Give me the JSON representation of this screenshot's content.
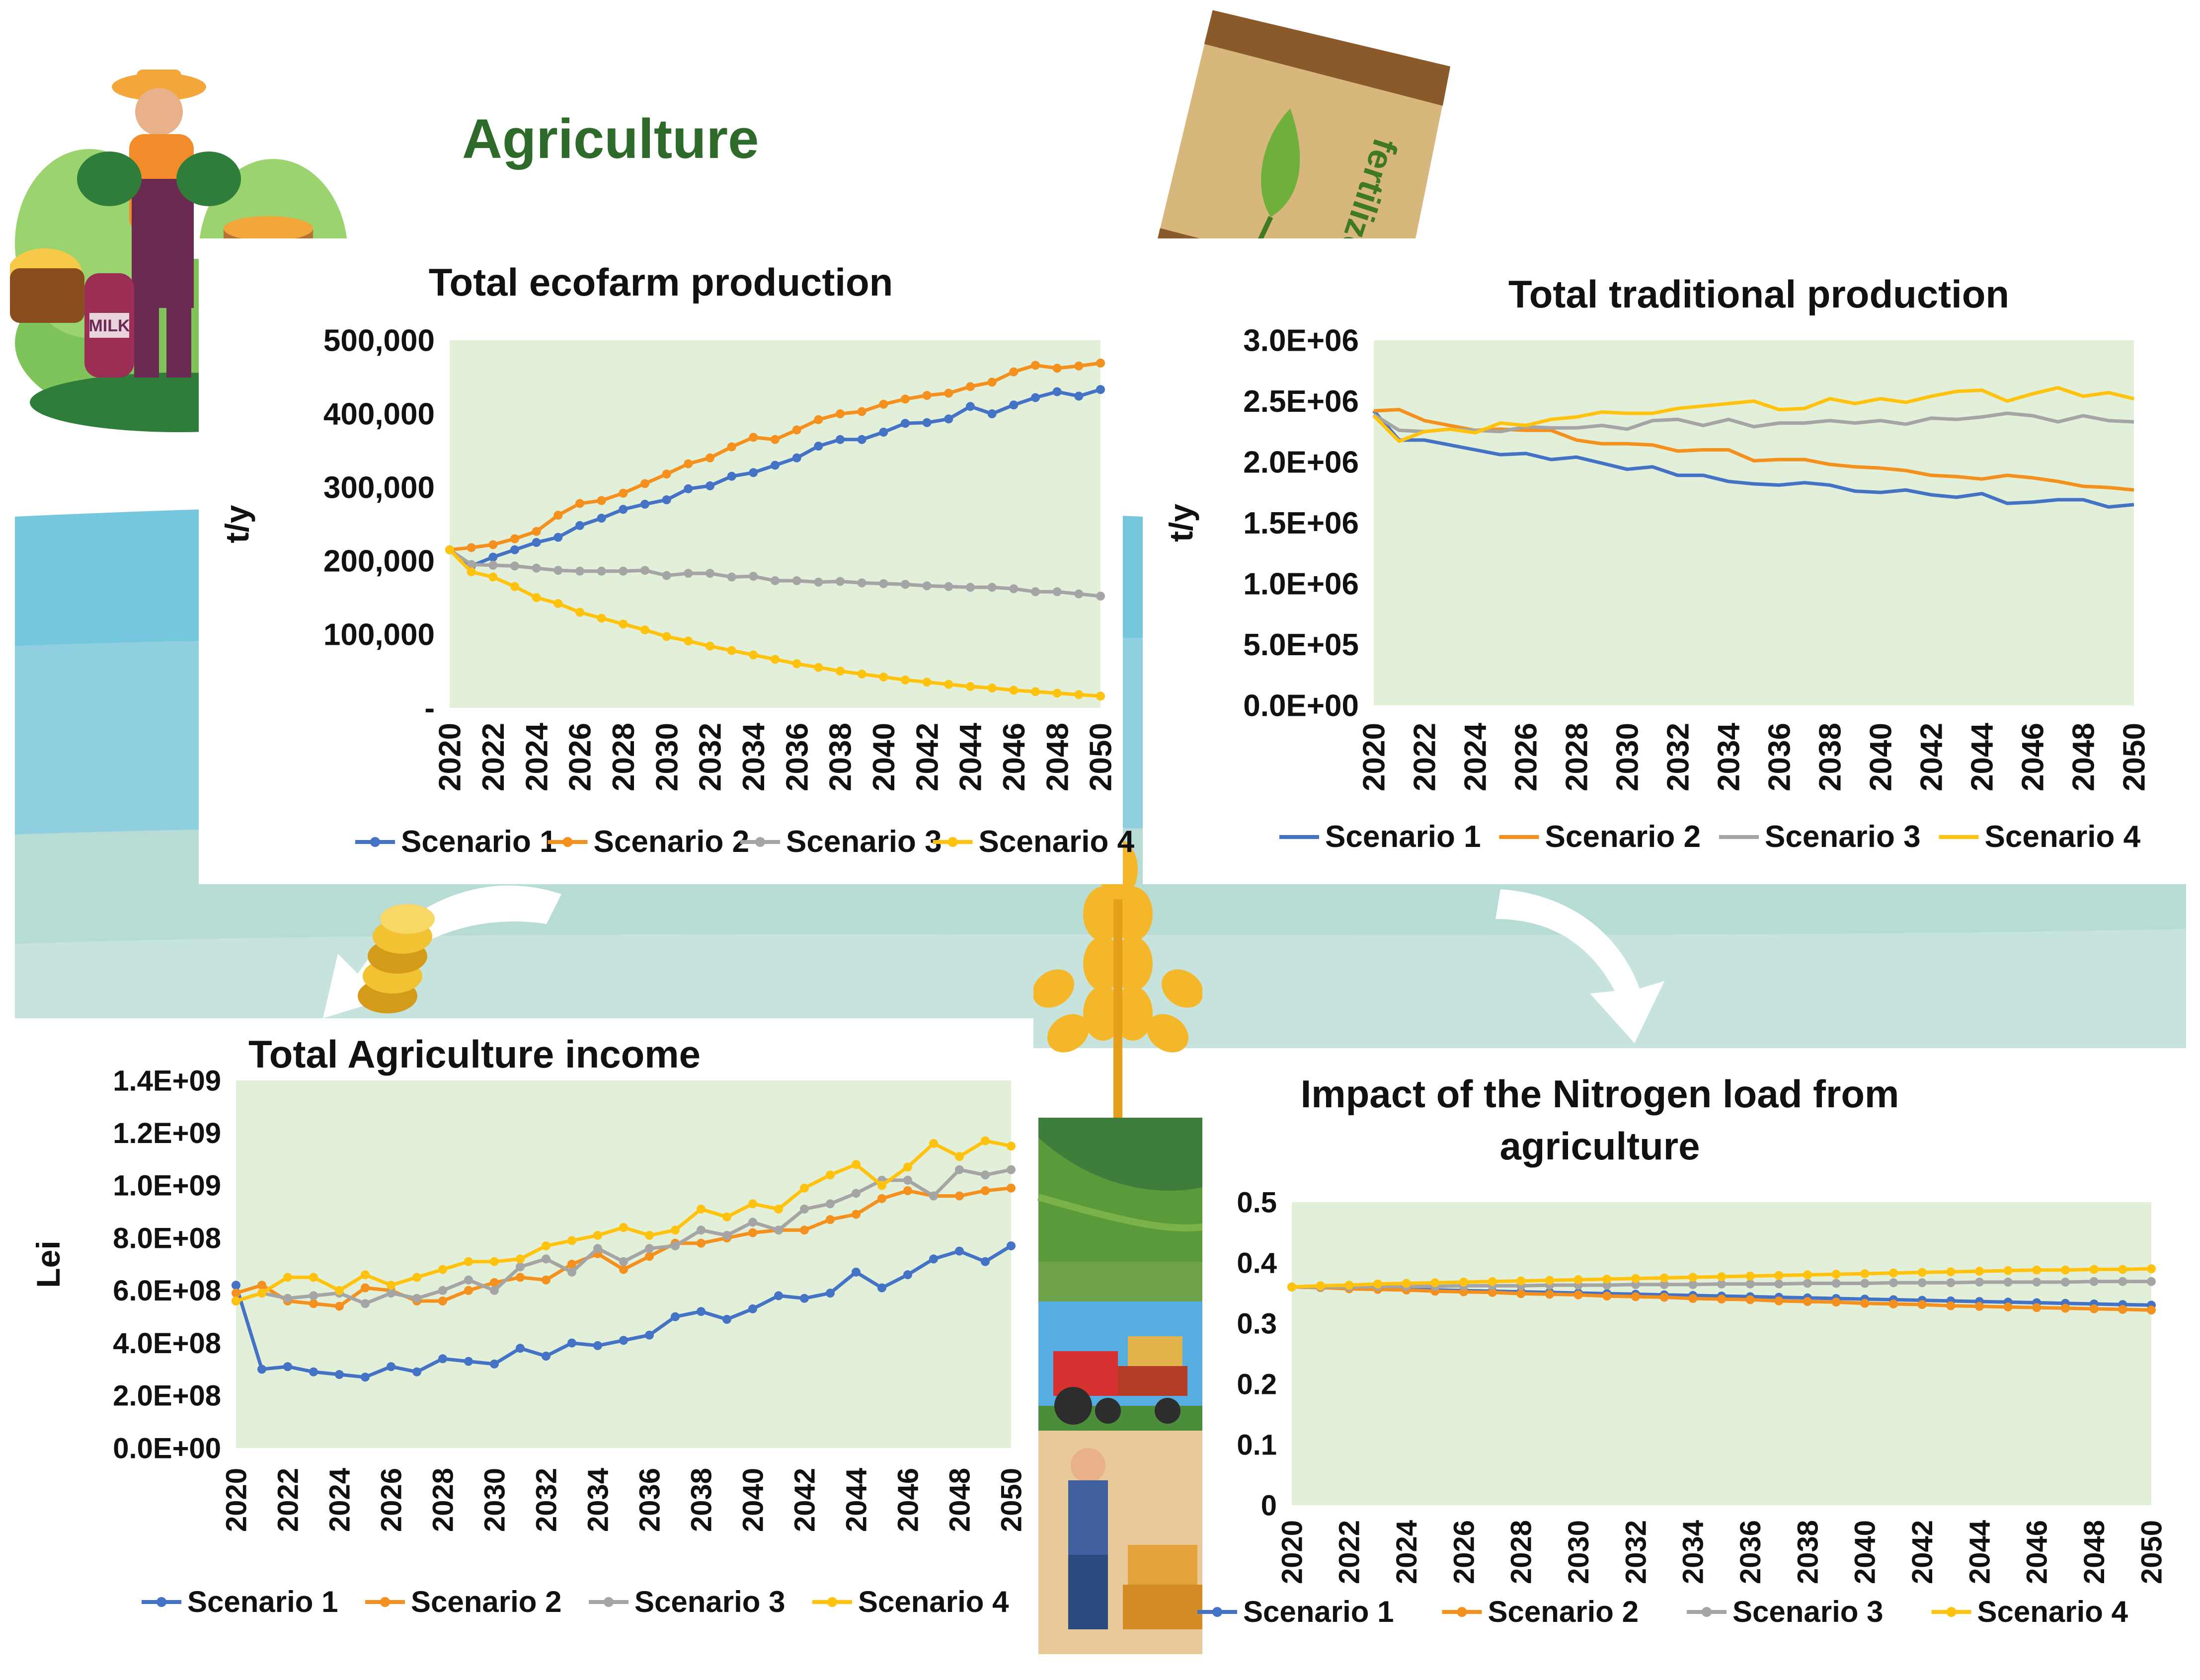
{
  "heading": "Agriculture",
  "illustrations": {
    "farmer": "farmer-with-vegetables",
    "fertilizer_bag_text": "fertilizer",
    "milk_can_text": "MILK",
    "coins": "gold-coins",
    "wheat": "wheat-ears",
    "fields": "green-fields",
    "tractor": "tractor-with-hay",
    "farmer_small": "farmer-with-pitchfork"
  },
  "colors": {
    "scenario1": "#4472C4",
    "scenario2": "#F4901E",
    "scenario3": "#A5A5A5",
    "scenario4": "#FFC20E",
    "plot_bg": "#E2EFD9",
    "heading": "#2E6B2A"
  },
  "chart_data": [
    {
      "id": "ecofarm",
      "type": "line",
      "title": "Total ecofarm production",
      "ylabel": "t/y",
      "xlabel": "",
      "markers": true,
      "grid": false,
      "legend_position": "bottom",
      "ylim": [
        0,
        500000
      ],
      "yticks": [
        0,
        100000,
        200000,
        300000,
        400000,
        500000
      ],
      "ytick_labels": [
        "-",
        "100,000",
        "200,000",
        "300,000",
        "400,000",
        "500,000"
      ],
      "x": [
        2020,
        2021,
        2022,
        2023,
        2024,
        2025,
        2026,
        2027,
        2028,
        2029,
        2030,
        2031,
        2032,
        2033,
        2034,
        2035,
        2036,
        2037,
        2038,
        2039,
        2040,
        2041,
        2042,
        2043,
        2044,
        2045,
        2046,
        2047,
        2048,
        2049,
        2050
      ],
      "xtick_labels": [
        "2020",
        "2022",
        "2024",
        "2026",
        "2028",
        "2030",
        "2032",
        "2034",
        "2036",
        "2038",
        "2040",
        "2042",
        "2044",
        "2046",
        "2048",
        "2050"
      ],
      "series": [
        {
          "name": "Scenario 1",
          "values": [
            215000,
            193000,
            205000,
            215000,
            225000,
            232000,
            248000,
            258000,
            270000,
            277000,
            283000,
            298000,
            302000,
            315000,
            320000,
            330000,
            340000,
            356000,
            365000,
            365000,
            375000,
            387000,
            388000,
            393000,
            410000,
            400000,
            412000,
            422000,
            430000,
            424000,
            433000
          ]
        },
        {
          "name": "Scenario 2",
          "values": [
            215000,
            218000,
            222000,
            230000,
            240000,
            262000,
            278000,
            282000,
            292000,
            305000,
            318000,
            332000,
            340000,
            355000,
            368000,
            365000,
            378000,
            392000,
            400000,
            403000,
            413000,
            420000,
            425000,
            428000,
            437000,
            443000,
            457000,
            466000,
            462000,
            465000,
            469000
          ]
        },
        {
          "name": "Scenario 3",
          "values": [
            215000,
            195000,
            194000,
            193000,
            190000,
            187000,
            186000,
            186000,
            186000,
            187000,
            180000,
            183000,
            183000,
            178000,
            179000,
            173000,
            173000,
            171000,
            172000,
            170000,
            169000,
            168000,
            166000,
            165000,
            164000,
            164000,
            162000,
            158000,
            158000,
            155000,
            152000
          ]
        },
        {
          "name": "Scenario 4",
          "values": [
            215000,
            185000,
            178000,
            165000,
            150000,
            142000,
            130000,
            122000,
            114000,
            106000,
            97000,
            91000,
            84000,
            78000,
            72000,
            66000,
            60000,
            55000,
            50000,
            46000,
            42000,
            38000,
            35000,
            32000,
            29000,
            27000,
            24000,
            22000,
            20000,
            18000,
            16000
          ]
        }
      ]
    },
    {
      "id": "traditional",
      "type": "line",
      "title": "Total traditional production",
      "ylabel": "t/y",
      "xlabel": "",
      "markers": false,
      "grid": false,
      "legend_position": "bottom",
      "ylim": [
        0,
        3000000
      ],
      "yticks": [
        0,
        500000,
        1000000,
        1500000,
        2000000,
        2500000,
        3000000
      ],
      "ytick_labels": [
        "0.0E+00",
        "5.0E+05",
        "1.0E+06",
        "1.5E+06",
        "2.0E+06",
        "2.5E+06",
        "3.0E+06"
      ],
      "x": [
        2020,
        2021,
        2022,
        2023,
        2024,
        2025,
        2026,
        2027,
        2028,
        2029,
        2030,
        2031,
        2032,
        2033,
        2034,
        2035,
        2036,
        2037,
        2038,
        2039,
        2040,
        2041,
        2042,
        2043,
        2044,
        2045,
        2046,
        2047,
        2048,
        2049,
        2050
      ],
      "xtick_labels": [
        "2020",
        "2022",
        "2024",
        "2026",
        "2028",
        "2030",
        "2032",
        "2034",
        "2036",
        "2038",
        "2040",
        "2042",
        "2044",
        "2046",
        "2048",
        "2050"
      ],
      "series": [
        {
          "name": "Scenario 1",
          "values": [
            2420000,
            2180000,
            2180000,
            2140000,
            2100000,
            2060000,
            2070000,
            2020000,
            2040000,
            1990000,
            1940000,
            1960000,
            1890000,
            1890000,
            1840000,
            1820000,
            1810000,
            1830000,
            1810000,
            1760000,
            1750000,
            1770000,
            1730000,
            1710000,
            1740000,
            1660000,
            1670000,
            1690000,
            1690000,
            1630000,
            1650000
          ]
        },
        {
          "name": "Scenario 2",
          "values": [
            2420000,
            2430000,
            2340000,
            2300000,
            2260000,
            2270000,
            2260000,
            2260000,
            2180000,
            2150000,
            2150000,
            2140000,
            2090000,
            2100000,
            2100000,
            2010000,
            2020000,
            2020000,
            1980000,
            1960000,
            1950000,
            1930000,
            1890000,
            1880000,
            1860000,
            1890000,
            1870000,
            1840000,
            1800000,
            1790000,
            1770000
          ]
        },
        {
          "name": "Scenario 3",
          "values": [
            2390000,
            2260000,
            2250000,
            2270000,
            2260000,
            2250000,
            2290000,
            2280000,
            2280000,
            2300000,
            2270000,
            2340000,
            2350000,
            2300000,
            2350000,
            2290000,
            2320000,
            2320000,
            2340000,
            2320000,
            2340000,
            2310000,
            2360000,
            2350000,
            2370000,
            2400000,
            2380000,
            2330000,
            2380000,
            2340000,
            2330000
          ]
        },
        {
          "name": "Scenario 4",
          "values": [
            2380000,
            2170000,
            2250000,
            2270000,
            2240000,
            2320000,
            2300000,
            2350000,
            2370000,
            2410000,
            2400000,
            2400000,
            2440000,
            2460000,
            2480000,
            2500000,
            2430000,
            2440000,
            2520000,
            2480000,
            2520000,
            2490000,
            2540000,
            2580000,
            2590000,
            2500000,
            2560000,
            2610000,
            2540000,
            2570000,
            2520000
          ]
        }
      ]
    },
    {
      "id": "income",
      "type": "line",
      "title": "Total Agriculture income",
      "ylabel": "Lei",
      "xlabel": "",
      "markers": true,
      "grid": false,
      "legend_position": "bottom",
      "ylim": [
        0,
        1400000000
      ],
      "yticks": [
        0,
        200000000,
        400000000,
        600000000,
        800000000,
        1000000000,
        1200000000,
        1400000000
      ],
      "ytick_labels": [
        "0.0E+00",
        "2.0E+08",
        "4.0E+08",
        "6.0E+08",
        "8.0E+08",
        "1.0E+09",
        "1.2E+09",
        "1.4E+09"
      ],
      "x": [
        2020,
        2021,
        2022,
        2023,
        2024,
        2025,
        2026,
        2027,
        2028,
        2029,
        2030,
        2031,
        2032,
        2033,
        2034,
        2035,
        2036,
        2037,
        2038,
        2039,
        2040,
        2041,
        2042,
        2043,
        2044,
        2045,
        2046,
        2047,
        2048,
        2049,
        2050
      ],
      "xtick_labels": [
        "2020",
        "2022",
        "2024",
        "2026",
        "2028",
        "2030",
        "2032",
        "2034",
        "2036",
        "2038",
        "2040",
        "2042",
        "2044",
        "2046",
        "2048",
        "2050"
      ],
      "series": [
        {
          "name": "Scenario 1",
          "values": [
            620000000,
            300000000,
            310000000,
            290000000,
            280000000,
            270000000,
            310000000,
            290000000,
            340000000,
            330000000,
            320000000,
            380000000,
            350000000,
            400000000,
            390000000,
            410000000,
            430000000,
            500000000,
            520000000,
            490000000,
            530000000,
            580000000,
            570000000,
            590000000,
            670000000,
            610000000,
            660000000,
            720000000,
            750000000,
            710000000,
            770000000
          ]
        },
        {
          "name": "Scenario 2",
          "values": [
            590000000,
            620000000,
            560000000,
            550000000,
            540000000,
            610000000,
            600000000,
            560000000,
            560000000,
            600000000,
            630000000,
            650000000,
            640000000,
            700000000,
            740000000,
            680000000,
            730000000,
            780000000,
            780000000,
            800000000,
            820000000,
            830000000,
            830000000,
            870000000,
            890000000,
            950000000,
            980000000,
            960000000,
            960000000,
            980000000,
            990000000
          ]
        },
        {
          "name": "Scenario 3",
          "values": [
            560000000,
            590000000,
            570000000,
            580000000,
            590000000,
            550000000,
            590000000,
            570000000,
            600000000,
            640000000,
            600000000,
            690000000,
            720000000,
            670000000,
            760000000,
            710000000,
            760000000,
            770000000,
            830000000,
            810000000,
            860000000,
            830000000,
            910000000,
            930000000,
            970000000,
            1020000000,
            1020000000,
            960000000,
            1060000000,
            1040000000,
            1060000000
          ]
        },
        {
          "name": "Scenario 4",
          "values": [
            560000000,
            590000000,
            650000000,
            650000000,
            600000000,
            660000000,
            620000000,
            650000000,
            680000000,
            710000000,
            710000000,
            720000000,
            770000000,
            790000000,
            810000000,
            840000000,
            810000000,
            830000000,
            910000000,
            880000000,
            930000000,
            910000000,
            990000000,
            1040000000,
            1080000000,
            1000000000,
            1070000000,
            1160000000,
            1110000000,
            1170000000,
            1150000000
          ]
        }
      ]
    },
    {
      "id": "nitrogen",
      "type": "line",
      "title": "Impact of the Nitrogen load from agriculture",
      "ylabel": "",
      "xlabel": "",
      "markers": true,
      "grid": false,
      "legend_position": "bottom",
      "ylim": [
        0,
        0.5
      ],
      "yticks": [
        0,
        0.1,
        0.2,
        0.3,
        0.4,
        0.5
      ],
      "ytick_labels": [
        "0",
        "0.1",
        "0.2",
        "0.3",
        "0.4",
        "0.5"
      ],
      "x": [
        2020,
        2021,
        2022,
        2023,
        2024,
        2025,
        2026,
        2027,
        2028,
        2029,
        2030,
        2031,
        2032,
        2033,
        2034,
        2035,
        2036,
        2037,
        2038,
        2039,
        2040,
        2041,
        2042,
        2043,
        2044,
        2045,
        2046,
        2047,
        2048,
        2049,
        2050
      ],
      "xtick_labels": [
        "2020",
        "2022",
        "2024",
        "2026",
        "2028",
        "2030",
        "2032",
        "2034",
        "2036",
        "2038",
        "2040",
        "2042",
        "2044",
        "2046",
        "2048",
        "2050"
      ],
      "series": [
        {
          "name": "Scenario 1",
          "values": [
            0.36,
            0.359,
            0.358,
            0.357,
            0.356,
            0.355,
            0.354,
            0.353,
            0.352,
            0.351,
            0.35,
            0.349,
            0.348,
            0.347,
            0.346,
            0.345,
            0.344,
            0.343,
            0.342,
            0.341,
            0.34,
            0.339,
            0.338,
            0.337,
            0.336,
            0.335,
            0.334,
            0.333,
            0.332,
            0.331,
            0.33
          ]
        },
        {
          "name": "Scenario 2",
          "values": [
            0.36,
            0.359,
            0.357,
            0.356,
            0.355,
            0.353,
            0.352,
            0.351,
            0.349,
            0.348,
            0.347,
            0.345,
            0.344,
            0.343,
            0.341,
            0.34,
            0.339,
            0.337,
            0.336,
            0.335,
            0.333,
            0.332,
            0.331,
            0.329,
            0.328,
            0.327,
            0.326,
            0.325,
            0.324,
            0.323,
            0.322
          ]
        },
        {
          "name": "Scenario 3",
          "values": [
            0.36,
            0.36,
            0.36,
            0.361,
            0.361,
            0.361,
            0.362,
            0.362,
            0.362,
            0.363,
            0.363,
            0.363,
            0.364,
            0.364,
            0.364,
            0.365,
            0.365,
            0.365,
            0.366,
            0.366,
            0.366,
            0.367,
            0.367,
            0.367,
            0.368,
            0.368,
            0.368,
            0.368,
            0.369,
            0.369,
            0.369
          ]
        },
        {
          "name": "Scenario 4",
          "values": [
            0.36,
            0.362,
            0.363,
            0.365,
            0.366,
            0.367,
            0.368,
            0.369,
            0.37,
            0.371,
            0.372,
            0.373,
            0.374,
            0.375,
            0.376,
            0.377,
            0.378,
            0.379,
            0.38,
            0.381,
            0.382,
            0.383,
            0.384,
            0.385,
            0.386,
            0.387,
            0.388,
            0.388,
            0.389,
            0.389,
            0.39
          ]
        }
      ]
    }
  ]
}
